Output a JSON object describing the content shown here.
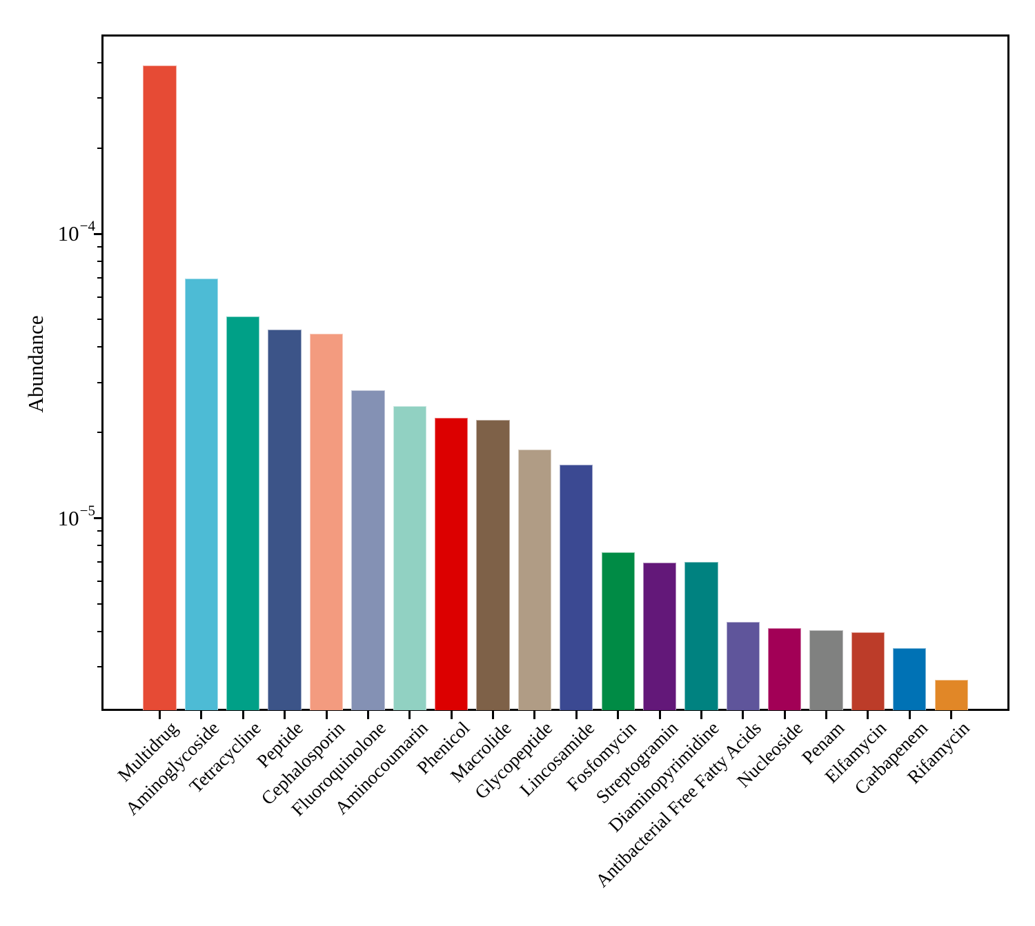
{
  "chart_data": {
    "type": "bar",
    "title": "",
    "xlabel": "",
    "ylabel": "Abundance",
    "yscale": "log",
    "ylim": [
      2.1e-06,
      0.0005
    ],
    "grid": false,
    "legend_position": "none",
    "yticks": [
      {
        "value": 0.0001,
        "base": "10",
        "exponent": "−4"
      },
      {
        "value": 1e-05,
        "base": "10",
        "exponent": "−5"
      }
    ],
    "categories": [
      "Multidrug",
      "Aminoglycoside",
      "Tetracycline",
      "Peptide",
      "Cephalosporin",
      "Fluoroquinolone",
      "Aminocoumarin",
      "Phenicol",
      "Macrolide",
      "Glycopeptide",
      "Lincosamide",
      "Fosfomycin",
      "Streptogramin",
      "Diaminopyrimidine",
      "Antibacterial Free Fatty Acids",
      "Nucleoside",
      "Penam",
      "Elfamycin",
      "Carbapenem",
      "Rifamycin"
    ],
    "values": [
      0.000392,
      6.98e-05,
      5.11e-05,
      4.61e-05,
      4.46e-05,
      2.82e-05,
      2.48e-05,
      2.26e-05,
      2.22e-05,
      1.74e-05,
      1.54e-05,
      7.6e-06,
      6.98e-06,
      7e-06,
      4.31e-06,
      4.1e-06,
      4.04e-06,
      3.96e-06,
      3.5e-06,
      2.7e-06
    ],
    "colors": [
      "#E64B35",
      "#4DBBD5",
      "#00A087",
      "#3C5488",
      "#F39B7F",
      "#8491B4",
      "#91D1C2",
      "#DC0000",
      "#7E6148",
      "#B09C85",
      "#3B4992",
      "#008B45",
      "#631879",
      "#008280",
      "#5F559B",
      "#A20056",
      "#808180",
      "#BC3C29",
      "#0072B5",
      "#E18727"
    ]
  }
}
